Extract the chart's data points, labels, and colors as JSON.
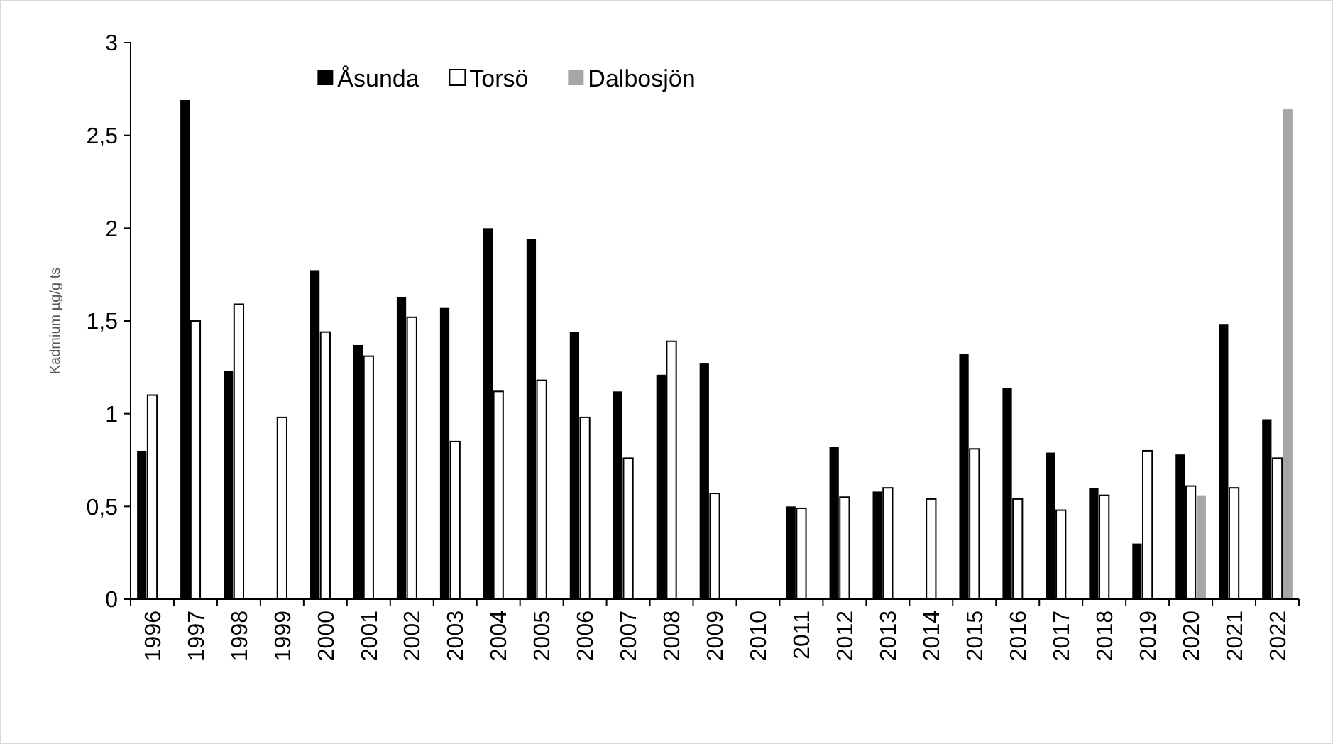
{
  "chart_data": {
    "type": "bar",
    "ylabel": "Kadmium µg/g ts",
    "categories": [
      "1996",
      "1997",
      "1998",
      "1999",
      "2000",
      "2001",
      "2002",
      "2003",
      "2004",
      "2005",
      "2006",
      "2007",
      "2008",
      "2009",
      "2010",
      "2011",
      "2012",
      "2013",
      "2014",
      "2015",
      "2016",
      "2017",
      "2018",
      "2019",
      "2020",
      "2021",
      "2022"
    ],
    "series": [
      {
        "name": "Åsunda",
        "color": "#000000",
        "values": [
          0.8,
          2.69,
          1.23,
          null,
          1.77,
          1.37,
          1.63,
          1.57,
          2.0,
          1.94,
          1.44,
          1.12,
          1.21,
          1.27,
          null,
          0.5,
          0.82,
          0.58,
          null,
          1.32,
          1.14,
          0.79,
          0.6,
          0.3,
          0.78,
          1.48,
          0.97
        ]
      },
      {
        "name": "Torsö",
        "color": "#ffffff",
        "values": [
          1.1,
          1.5,
          1.59,
          0.98,
          1.44,
          1.31,
          1.52,
          0.85,
          1.12,
          1.18,
          0.98,
          0.76,
          1.39,
          0.57,
          null,
          0.49,
          0.55,
          0.6,
          0.54,
          0.81,
          0.54,
          0.48,
          0.56,
          0.8,
          0.61,
          0.6,
          0.76
        ]
      },
      {
        "name": "Dalbosjön",
        "color": "#a6a6a6",
        "values": [
          null,
          null,
          null,
          null,
          null,
          null,
          null,
          null,
          null,
          null,
          null,
          null,
          null,
          null,
          null,
          null,
          null,
          null,
          null,
          null,
          null,
          null,
          null,
          null,
          0.56,
          null,
          2.64
        ]
      }
    ],
    "ylim": [
      0,
      3
    ],
    "yticks": [
      0,
      {
        "value": 0.5,
        "label": "0,5"
      },
      1,
      {
        "value": 1.5,
        "label": "1,5"
      },
      2,
      {
        "value": 2.5,
        "label": "2,5"
      },
      3
    ],
    "grid": false,
    "legend": "top"
  }
}
